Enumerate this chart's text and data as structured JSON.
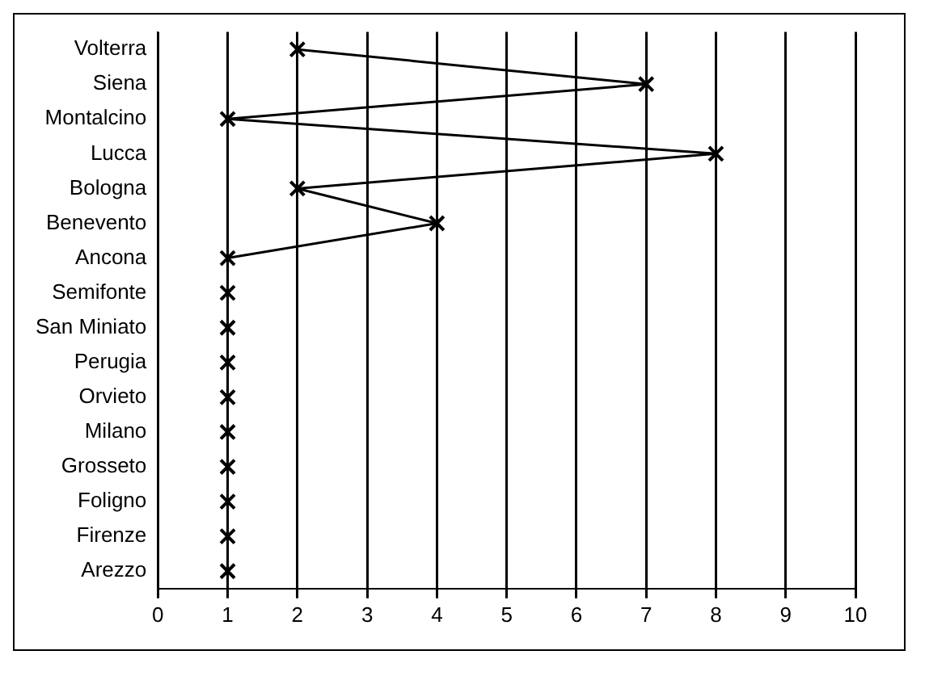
{
  "chart_data": {
    "type": "line",
    "orientation": "horizontal",
    "categories": [
      "Volterra",
      "Siena",
      "Montalcino",
      "Lucca",
      "Bologna",
      "Benevento",
      "Ancona",
      "Semifonte",
      "San Miniato",
      "Perugia",
      "Orvieto",
      "Milano",
      "Grosseto",
      "Foligno",
      "Firenze",
      "Arezzo"
    ],
    "values": [
      2,
      7,
      1,
      8,
      2,
      4,
      1,
      1,
      1,
      1,
      1,
      1,
      1,
      1,
      1,
      1
    ],
    "color": "#000000",
    "xlim": [
      0,
      10
    ],
    "xticks": [
      0,
      1,
      2,
      3,
      4,
      5,
      6,
      7,
      8,
      9,
      10
    ],
    "grid": "x",
    "marker": "cross",
    "line_style": "solid",
    "legend": false
  }
}
